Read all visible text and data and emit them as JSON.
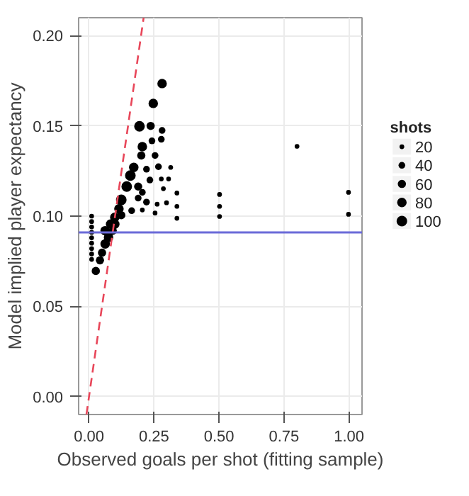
{
  "chart_data": {
    "type": "bubble",
    "xlabel": "Observed goals per shot (fitting sample)",
    "ylabel": "Model implied player expectancy",
    "legend_title": "shots",
    "size_legend": [
      20,
      40,
      60,
      80,
      100
    ],
    "xlim": [
      -0.04,
      1.05
    ],
    "ylim": [
      -0.01,
      0.21
    ],
    "xticks": [
      {
        "value": 0,
        "label": "0.00"
      },
      {
        "value": 0.25,
        "label": "0.25"
      },
      {
        "value": 0.5,
        "label": "0.50"
      },
      {
        "value": 0.75,
        "label": "0.75"
      },
      {
        "value": 1,
        "label": "1.00"
      }
    ],
    "yticks": [
      {
        "value": 0,
        "label": "0.00"
      },
      {
        "value": 0.05,
        "label": "0.05"
      },
      {
        "value": 0.1,
        "label": "0.10"
      },
      {
        "value": 0.15,
        "label": "0.15"
      },
      {
        "value": 0.2,
        "label": "0.20"
      }
    ],
    "grid": true,
    "series": [
      {
        "type": "bubble",
        "color": "#000000",
        "x": [
          0.281,
          0.247,
          0.194,
          0.237,
          0.281,
          0.205,
          0.242,
          0.278,
          0.201,
          0.254,
          0.172,
          0.159,
          0.221,
          0.267,
          0.314,
          0.234,
          0.278,
          0.306,
          0.145,
          0.189,
          0.205,
          0.286,
          0.338,
          0.124,
          0.189,
          0.221,
          0.262,
          0.298,
          0.338,
          0.115,
          0.164,
          0.205,
          0.254,
          0.338,
          0.502,
          0.502,
          0.502,
          0.099,
          0.083,
          0.062,
          0.8,
          0.998,
          0.998,
          0.01,
          0.01,
          0.01,
          0.01,
          0.01,
          0.01,
          0.01,
          0.01,
          0.01,
          0.026,
          0.042,
          0.05,
          0.062,
          0.075,
          0.091,
          0.099,
          0.124
        ],
        "values": [
          0.1735,
          0.1625,
          0.1498,
          0.15,
          0.1475,
          0.1385,
          0.1417,
          0.1426,
          0.1336,
          0.1336,
          0.127,
          0.1225,
          0.126,
          0.1274,
          0.127,
          0.12,
          0.1206,
          0.1206,
          0.1164,
          0.1164,
          0.1132,
          0.1152,
          0.1128,
          0.109,
          0.11,
          0.1078,
          0.1066,
          0.1074,
          0.1054,
          0.104,
          0.103,
          0.1034,
          0.1017,
          0.0988,
          0.112,
          0.1054,
          0.0998,
          0.0993,
          0.0956,
          0.0919,
          0.1387,
          0.1132,
          0.101,
          0.1,
          0.097,
          0.094,
          0.091,
          0.088,
          0.085,
          0.082,
          0.079,
          0.076,
          0.0696,
          0.0755,
          0.0797,
          0.0846,
          0.0882,
          0.0919,
          0.0956,
          0.1005
        ],
        "sizes": [
          80,
          80,
          100,
          60,
          40,
          80,
          40,
          40,
          60,
          40,
          80,
          100,
          40,
          40,
          20,
          40,
          20,
          20,
          100,
          60,
          40,
          20,
          20,
          100,
          40,
          40,
          20,
          20,
          20,
          80,
          40,
          20,
          20,
          20,
          20,
          20,
          20,
          80,
          80,
          80,
          20,
          20,
          20,
          20,
          20,
          20,
          20,
          20,
          20,
          20,
          20,
          20,
          60,
          60,
          60,
          80,
          80,
          60,
          80,
          60
        ]
      },
      {
        "type": "line",
        "color": "#e8475a",
        "line_style": "dashed",
        "x": [
          -0.01,
          0.21
        ],
        "values": [
          -0.01,
          0.21
        ]
      }
    ],
    "ref_lines": [
      {
        "axis": "y",
        "value": 0.091,
        "color": "#6b6bd8"
      }
    ]
  }
}
